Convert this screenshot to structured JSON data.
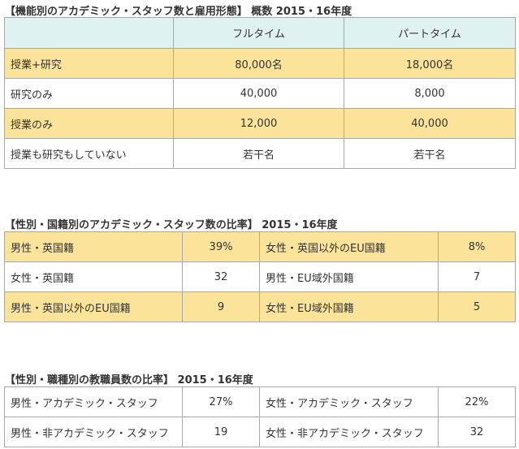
{
  "colors": {
    "header_bg": "#dff1f1",
    "highlight_row_bg": "#fbe39a",
    "plain_row_bg": "#ffffff",
    "border": "#a8a8a8"
  },
  "section1": {
    "title": "【機能別のアカデミック・スタッフ数と雇用形態】 概数 2015・16年度",
    "headers": [
      "",
      "フルタイム",
      "パートタイム"
    ],
    "rows": [
      {
        "label": "授業+研究",
        "full_time": "80,000名",
        "part_time": "18,000名"
      },
      {
        "label": "研究のみ",
        "full_time": "40,000",
        "part_time": "8,000"
      },
      {
        "label": "授業のみ",
        "full_time": "12,000",
        "part_time": "40,000"
      },
      {
        "label": "授業も研究もしていない",
        "full_time": "若干名",
        "part_time": "若干名"
      }
    ]
  },
  "section2": {
    "title": "【性別・国籍別のアカデミック・スタッフ数の比率】 2015・16年度",
    "rows": [
      {
        "label_a": "男性・英国籍",
        "value_a": "39%",
        "label_b": "女性・英国以外のEU国籍",
        "value_b": "8%"
      },
      {
        "label_a": "女性・英国籍",
        "value_a": "32",
        "label_b": "男性・EU域外国籍",
        "value_b": "7"
      },
      {
        "label_a": "男性・英国以外のEU国籍",
        "value_a": "9",
        "label_b": "女性・EU域外国籍",
        "value_b": "5"
      }
    ]
  },
  "section3": {
    "title": "【性別・職種別の教職員数の比率】 2015・16年度",
    "rows": [
      {
        "label_a": "男性・アカデミック・スタッフ",
        "value_a": "27%",
        "label_b": "女性・アカデミック・スタッフ",
        "value_b": "22%"
      },
      {
        "label_a": "男性・非アカデミック・スタッフ",
        "value_a": "19",
        "label_b": "女性・非アカデミック・スタッフ",
        "value_b": "32"
      }
    ]
  }
}
